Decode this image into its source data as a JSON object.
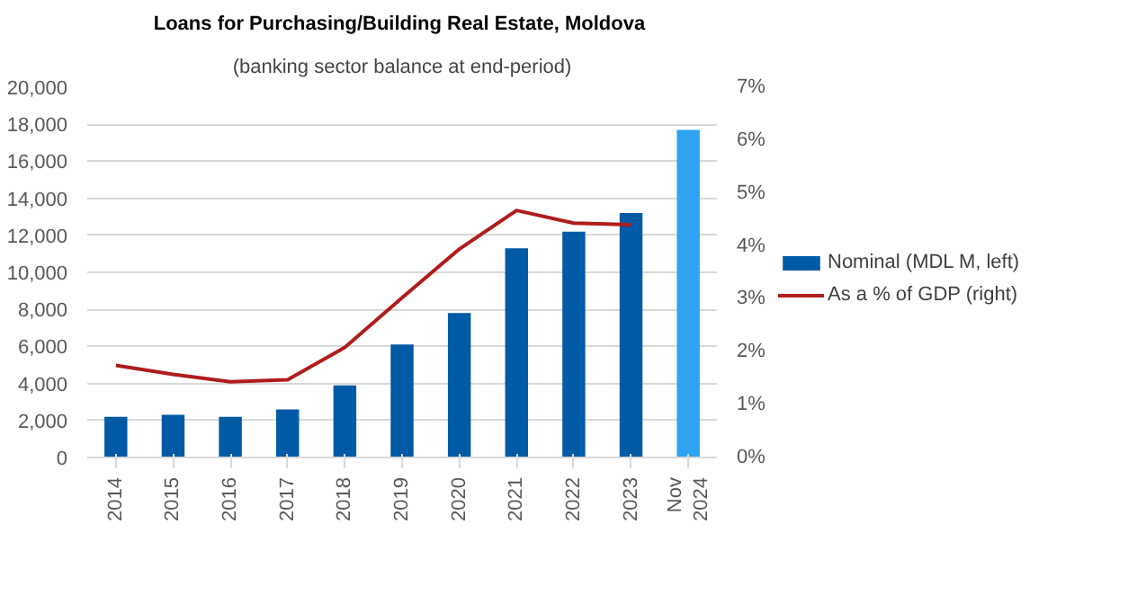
{
  "chart_data": {
    "type": "bar",
    "title": "Loans for Purchasing/Building  Real Estate, Moldova",
    "subtitle": "(banking sector balance at end-period)",
    "categories": [
      "2014",
      "2015",
      "2016",
      "2017",
      "2018",
      "2019",
      "2020",
      "2021",
      "2022",
      "2023",
      "Nov 2024"
    ],
    "series": [
      {
        "name": "Nominal (MDL M, left)",
        "colors": [
          "#005aa5",
          "#005aa5",
          "#005aa5",
          "#005aa5",
          "#005aa5",
          "#005aa5",
          "#005aa5",
          "#005aa5",
          "#005aa5",
          "#005aa5",
          "#2ea3f2"
        ],
        "color": "#005aa5",
        "values": [
          2200,
          2300,
          2200,
          2600,
          3900,
          6100,
          7800,
          11300,
          12200,
          13200,
          17700
        ]
      },
      {
        "name": "As a % of GDP (right)",
        "type": "line",
        "axis": "y2",
        "color": "#b01c1c",
        "values": [
          1.74,
          1.57,
          1.43,
          1.47,
          2.08,
          3.02,
          3.94,
          4.67,
          4.43,
          4.4,
          null
        ]
      }
    ],
    "ylim": [
      0,
      20000
    ],
    "yticks": [
      {
        "value": 0,
        "label": "0"
      },
      {
        "value": 2000,
        "label": "2,000"
      },
      {
        "value": 4000,
        "label": "4,000"
      },
      {
        "value": 6000,
        "label": "6,000"
      },
      {
        "value": 8000,
        "label": "8,000"
      },
      {
        "value": 10000,
        "label": "10,000"
      },
      {
        "value": 12000,
        "label": "12,000"
      },
      {
        "value": 14000,
        "label": "14,000"
      },
      {
        "value": 16000,
        "label": "16,000"
      },
      {
        "value": 18000,
        "label": "18,000"
      },
      {
        "value": 20000,
        "label": "20,000"
      }
    ],
    "y2lim": [
      0,
      7
    ],
    "y2ticks": [
      {
        "value": 0,
        "label": "0%"
      },
      {
        "value": 1,
        "label": "1%"
      },
      {
        "value": 2,
        "label": "2%"
      },
      {
        "value": 3,
        "label": "3%"
      },
      {
        "value": 4,
        "label": "4%"
      },
      {
        "value": 5,
        "label": "5%"
      },
      {
        "value": 6,
        "label": "6%"
      },
      {
        "value": 7,
        "label": "7%"
      }
    ],
    "grid": "y",
    "legend": "right"
  }
}
